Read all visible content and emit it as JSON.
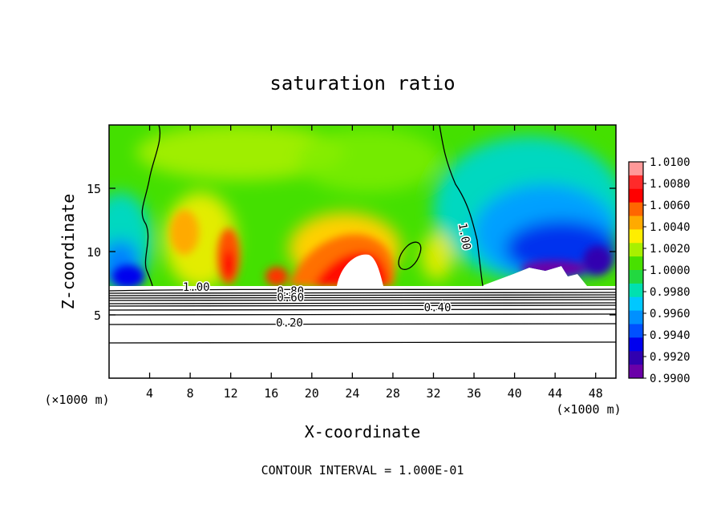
{
  "chart_data": {
    "type": "heatmap",
    "title": "saturation ratio",
    "xlabel": "X-coordinate",
    "ylabel": "Z-coordinate",
    "x_unit": "(×1000 m)",
    "y_unit": "(×1000 m)",
    "footer": "CONTOUR INTERVAL = 1.000E-01",
    "xlim": [
      0,
      50
    ],
    "ylim": [
      0,
      20
    ],
    "x_ticks": [
      "4",
      "8",
      "12",
      "16",
      "20",
      "24",
      "28",
      "32",
      "36",
      "40",
      "44",
      "48"
    ],
    "y_ticks": [
      "5",
      "10",
      "15"
    ],
    "colorbar": {
      "labels": [
        "1.0100",
        "1.0080",
        "1.0060",
        "1.0040",
        "1.0020",
        "1.0000",
        "0.9980",
        "0.9960",
        "0.9940",
        "0.9920",
        "0.9900"
      ],
      "colors": [
        "#ff9999",
        "#ff2a2a",
        "#ff0000",
        "#ff6600",
        "#ffaa00",
        "#ffee00",
        "#a8f000",
        "#48e000",
        "#22d840",
        "#00e0b0",
        "#00c8ff",
        "#0090ff",
        "#0050ff",
        "#0000ee",
        "#3000b0",
        "#6a00a8"
      ]
    },
    "contour_labels": [
      {
        "text": "1.00",
        "x": 8.6,
        "y": 7.2
      },
      {
        "text": "1.00",
        "x": 35.1,
        "y": 11.2
      },
      {
        "text": "0.80",
        "x": 17.9,
        "y": 6.9
      },
      {
        "text": "0.60",
        "x": 17.9,
        "y": 6.4
      },
      {
        "text": "0.40",
        "x": 32.4,
        "y": 5.6
      },
      {
        "text": "0.20",
        "x": 17.8,
        "y": 4.4
      }
    ]
  }
}
